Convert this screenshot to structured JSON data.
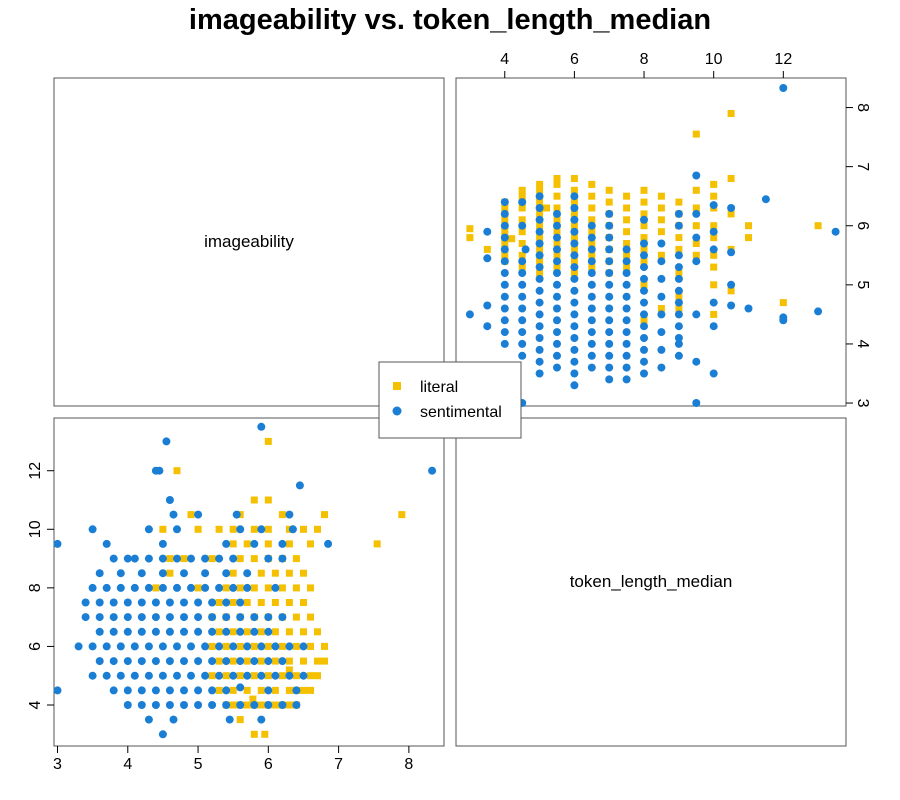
{
  "chart_data": {
    "type": "scatter",
    "title": "imageability vs. token_length_median",
    "variables": [
      "imageability",
      "token_length_median"
    ],
    "series": [
      {
        "name": "literal",
        "color": "#F5C000",
        "marker": "square"
      },
      {
        "name": "sentimental",
        "color": "#1A7FD4",
        "marker": "circle"
      }
    ],
    "axes": {
      "imageability": {
        "range": [
          2.95,
          8.5
        ],
        "ticks": [
          3,
          4,
          5,
          6,
          7,
          8
        ]
      },
      "token_length_median": {
        "range": [
          2.6,
          13.8
        ],
        "ticks": [
          4,
          6,
          8,
          10,
          12
        ]
      }
    },
    "legend": {
      "position": "center",
      "labels": [
        "literal",
        "sentimental"
      ]
    },
    "points": {
      "literal": [
        [
          5.4,
          4
        ],
        [
          5.5,
          4
        ],
        [
          5.6,
          4
        ],
        [
          5.7,
          4
        ],
        [
          5.8,
          4
        ],
        [
          5.9,
          4
        ],
        [
          6.0,
          4
        ],
        [
          6.1,
          4
        ],
        [
          6.2,
          4
        ],
        [
          6.3,
          4
        ],
        [
          6.4,
          4
        ],
        [
          5.6,
          3.5
        ],
        [
          5.8,
          3
        ],
        [
          5.95,
          3
        ],
        [
          5.3,
          4.5
        ],
        [
          5.5,
          4.5
        ],
        [
          5.7,
          4.5
        ],
        [
          5.9,
          4.5
        ],
        [
          6.1,
          4.5
        ],
        [
          6.3,
          4.5
        ],
        [
          6.4,
          4.5
        ],
        [
          6.5,
          4.5
        ],
        [
          6.6,
          4.5
        ],
        [
          5.2,
          5
        ],
        [
          5.4,
          5
        ],
        [
          5.6,
          5
        ],
        [
          5.8,
          5
        ],
        [
          6.0,
          5
        ],
        [
          6.2,
          5
        ],
        [
          6.4,
          5
        ],
        [
          6.6,
          5
        ],
        [
          6.7,
          5
        ],
        [
          5.3,
          5.5
        ],
        [
          5.5,
          5.5
        ],
        [
          5.7,
          5.5
        ],
        [
          5.9,
          5.5
        ],
        [
          6.1,
          5.5
        ],
        [
          6.3,
          5.5
        ],
        [
          6.5,
          5.5
        ],
        [
          6.7,
          5.5
        ],
        [
          6.8,
          5.5
        ],
        [
          5.2,
          6
        ],
        [
          5.4,
          6
        ],
        [
          5.6,
          6
        ],
        [
          5.8,
          6
        ],
        [
          6.0,
          6
        ],
        [
          6.2,
          6
        ],
        [
          6.4,
          6
        ],
        [
          6.6,
          6
        ],
        [
          6.8,
          6
        ],
        [
          5.3,
          6.5
        ],
        [
          5.5,
          6.5
        ],
        [
          5.7,
          6.5
        ],
        [
          5.9,
          6.5
        ],
        [
          6.1,
          6.5
        ],
        [
          6.3,
          6.5
        ],
        [
          6.5,
          6.5
        ],
        [
          6.7,
          6.5
        ],
        [
          5.2,
          7
        ],
        [
          5.4,
          7
        ],
        [
          5.6,
          7
        ],
        [
          5.8,
          7
        ],
        [
          6.0,
          7
        ],
        [
          6.2,
          7
        ],
        [
          6.4,
          7
        ],
        [
          6.6,
          7
        ],
        [
          5.3,
          7.5
        ],
        [
          5.5,
          7.5
        ],
        [
          5.7,
          7.5
        ],
        [
          5.9,
          7.5
        ],
        [
          6.1,
          7.5
        ],
        [
          6.3,
          7.5
        ],
        [
          6.5,
          7.5
        ],
        [
          4.4,
          8
        ],
        [
          5.0,
          8
        ],
        [
          5.4,
          8
        ],
        [
          5.6,
          8
        ],
        [
          5.8,
          8
        ],
        [
          6.0,
          8
        ],
        [
          6.2,
          8
        ],
        [
          6.4,
          8
        ],
        [
          6.6,
          8
        ],
        [
          4.6,
          8.5
        ],
        [
          5.5,
          8.5
        ],
        [
          5.9,
          8.5
        ],
        [
          6.1,
          8.5
        ],
        [
          6.3,
          8.5
        ],
        [
          6.5,
          8.5
        ],
        [
          4.6,
          9
        ],
        [
          4.8,
          9
        ],
        [
          5.2,
          9
        ],
        [
          5.6,
          9
        ],
        [
          5.8,
          9
        ],
        [
          6.0,
          9
        ],
        [
          6.2,
          9
        ],
        [
          6.4,
          9
        ],
        [
          5.5,
          9.5
        ],
        [
          5.7,
          9.5
        ],
        [
          6.0,
          9.5
        ],
        [
          6.3,
          9.5
        ],
        [
          6.6,
          9.5
        ],
        [
          4.5,
          10
        ],
        [
          5.0,
          10
        ],
        [
          5.3,
          10
        ],
        [
          5.5,
          10
        ],
        [
          5.8,
          10
        ],
        [
          6.0,
          10
        ],
        [
          6.3,
          10
        ],
        [
          6.5,
          10
        ],
        [
          6.7,
          10
        ],
        [
          4.9,
          10.5
        ],
        [
          5.6,
          10.5
        ],
        [
          6.2,
          10.5
        ],
        [
          6.8,
          10.5
        ],
        [
          5.8,
          11
        ],
        [
          6.0,
          11
        ],
        [
          4.7,
          12
        ],
        [
          6.0,
          13
        ],
        [
          7.55,
          9.5
        ],
        [
          7.9,
          10.5
        ],
        [
          5.78,
          4.2
        ],
        [
          6.3,
          5.2
        ]
      ],
      "sentimental": [
        [
          4.5,
          3
        ],
        [
          4.3,
          3.5
        ],
        [
          4.65,
          3.5
        ],
        [
          5.45,
          3.5
        ],
        [
          5.9,
          3.5
        ],
        [
          4.0,
          4
        ],
        [
          4.2,
          4
        ],
        [
          4.4,
          4
        ],
        [
          4.6,
          4
        ],
        [
          4.8,
          4
        ],
        [
          5.0,
          4
        ],
        [
          5.2,
          4
        ],
        [
          5.4,
          4
        ],
        [
          5.6,
          4
        ],
        [
          5.8,
          4
        ],
        [
          6.0,
          4
        ],
        [
          6.2,
          4
        ],
        [
          6.4,
          4
        ],
        [
          3.8,
          4.5
        ],
        [
          4.0,
          4.5
        ],
        [
          4.2,
          4.5
        ],
        [
          4.4,
          4.5
        ],
        [
          4.6,
          4.5
        ],
        [
          4.8,
          4.5
        ],
        [
          5.0,
          4.5
        ],
        [
          5.2,
          4.5
        ],
        [
          5.4,
          4.5
        ],
        [
          6.0,
          4.5
        ],
        [
          6.4,
          4.5
        ],
        [
          3.5,
          5
        ],
        [
          3.7,
          5
        ],
        [
          3.9,
          5
        ],
        [
          4.1,
          5
        ],
        [
          4.3,
          5
        ],
        [
          4.5,
          5
        ],
        [
          4.7,
          5
        ],
        [
          4.9,
          5
        ],
        [
          5.1,
          5
        ],
        [
          5.3,
          5
        ],
        [
          5.5,
          5
        ],
        [
          5.7,
          5
        ],
        [
          5.9,
          5
        ],
        [
          6.1,
          5
        ],
        [
          6.3,
          5
        ],
        [
          6.5,
          5
        ],
        [
          3.6,
          5.5
        ],
        [
          3.8,
          5.5
        ],
        [
          4.0,
          5.5
        ],
        [
          4.2,
          5.5
        ],
        [
          4.4,
          5.5
        ],
        [
          4.6,
          5.5
        ],
        [
          4.8,
          5.5
        ],
        [
          5.0,
          5.5
        ],
        [
          5.2,
          5.5
        ],
        [
          5.4,
          5.5
        ],
        [
          5.6,
          5.5
        ],
        [
          5.8,
          5.5
        ],
        [
          6.0,
          5.5
        ],
        [
          6.2,
          5.5
        ],
        [
          3.3,
          6
        ],
        [
          3.5,
          6
        ],
        [
          3.7,
          6
        ],
        [
          3.9,
          6
        ],
        [
          4.1,
          6
        ],
        [
          4.3,
          6
        ],
        [
          4.5,
          6
        ],
        [
          4.7,
          6
        ],
        [
          4.9,
          6
        ],
        [
          5.1,
          6
        ],
        [
          5.3,
          6
        ],
        [
          5.5,
          6
        ],
        [
          5.7,
          6
        ],
        [
          5.9,
          6
        ],
        [
          6.1,
          6
        ],
        [
          6.3,
          6
        ],
        [
          6.5,
          6
        ],
        [
          3.6,
          6.5
        ],
        [
          3.8,
          6.5
        ],
        [
          4.0,
          6.5
        ],
        [
          4.2,
          6.5
        ],
        [
          4.4,
          6.5
        ],
        [
          4.6,
          6.5
        ],
        [
          4.8,
          6.5
        ],
        [
          5.0,
          6.5
        ],
        [
          5.2,
          6.5
        ],
        [
          5.4,
          6.5
        ],
        [
          5.6,
          6.5
        ],
        [
          5.8,
          6.5
        ],
        [
          6.0,
          6.5
        ],
        [
          3.4,
          7
        ],
        [
          3.6,
          7
        ],
        [
          3.8,
          7
        ],
        [
          4.0,
          7
        ],
        [
          4.2,
          7
        ],
        [
          4.4,
          7
        ],
        [
          4.6,
          7
        ],
        [
          4.8,
          7
        ],
        [
          5.0,
          7
        ],
        [
          5.2,
          7
        ],
        [
          5.4,
          7
        ],
        [
          5.6,
          7
        ],
        [
          5.8,
          7
        ],
        [
          6.0,
          7
        ],
        [
          6.2,
          7
        ],
        [
          3.4,
          7.5
        ],
        [
          3.6,
          7.5
        ],
        [
          3.8,
          7.5
        ],
        [
          4.0,
          7.5
        ],
        [
          4.2,
          7.5
        ],
        [
          4.4,
          7.5
        ],
        [
          4.6,
          7.5
        ],
        [
          4.8,
          7.5
        ],
        [
          5.0,
          7.5
        ],
        [
          5.2,
          7.5
        ],
        [
          5.4,
          7.5
        ],
        [
          5.6,
          7.5
        ],
        [
          3.5,
          8
        ],
        [
          3.7,
          8
        ],
        [
          3.9,
          8
        ],
        [
          4.1,
          8
        ],
        [
          4.3,
          8
        ],
        [
          4.5,
          8
        ],
        [
          4.7,
          8
        ],
        [
          4.9,
          8
        ],
        [
          5.1,
          8
        ],
        [
          5.3,
          8
        ],
        [
          5.5,
          8
        ],
        [
          5.7,
          8
        ],
        [
          6.1,
          8
        ],
        [
          3.6,
          8.5
        ],
        [
          3.9,
          8.5
        ],
        [
          4.2,
          8.5
        ],
        [
          4.5,
          8.5
        ],
        [
          4.8,
          8.5
        ],
        [
          5.1,
          8.5
        ],
        [
          5.4,
          8.5
        ],
        [
          5.7,
          8.5
        ],
        [
          3.8,
          9
        ],
        [
          4.0,
          9
        ],
        [
          4.1,
          9
        ],
        [
          4.3,
          9
        ],
        [
          4.5,
          9
        ],
        [
          4.7,
          9
        ],
        [
          4.9,
          9
        ],
        [
          5.1,
          9
        ],
        [
          5.3,
          9
        ],
        [
          5.5,
          9
        ],
        [
          6.0,
          9
        ],
        [
          6.2,
          9
        ],
        [
          3.7,
          9.5
        ],
        [
          4.5,
          9.5
        ],
        [
          5.4,
          9.5
        ],
        [
          5.8,
          9.5
        ],
        [
          6.2,
          9.5
        ],
        [
          6.85,
          9.5
        ],
        [
          3.0,
          9.5
        ],
        [
          3.5,
          10
        ],
        [
          4.3,
          10
        ],
        [
          4.7,
          10
        ],
        [
          5.6,
          10
        ],
        [
          5.9,
          10
        ],
        [
          6.35,
          10
        ],
        [
          4.65,
          10.5
        ],
        [
          5.0,
          10.5
        ],
        [
          5.55,
          10.5
        ],
        [
          6.3,
          10.5
        ],
        [
          4.6,
          11
        ],
        [
          6.45,
          11.5
        ],
        [
          4.4,
          12
        ],
        [
          4.45,
          12
        ],
        [
          4.55,
          13
        ],
        [
          5.9,
          13.5
        ],
        [
          8.33,
          12
        ],
        [
          3.0,
          4.5
        ],
        [
          5.6,
          4.6
        ]
      ]
    }
  }
}
